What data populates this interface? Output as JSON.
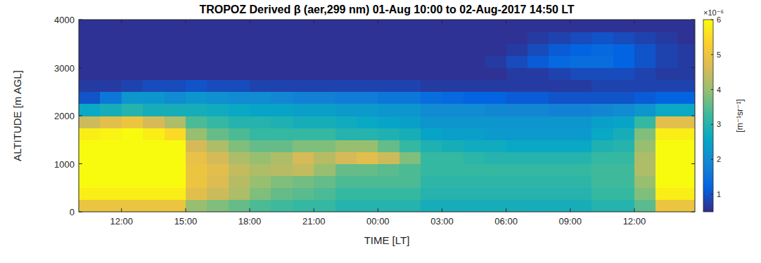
{
  "chart_data": {
    "type": "heatmap",
    "title": "TROPOZ Derived β (aer,299 nm) 01-Aug 10:00 to 02-Aug-2017 14:50 LT",
    "x_label": "TIME [LT]",
    "y_label": "ALTITUDE [m AGL]",
    "xlim": [
      10,
      38.833
    ],
    "xticks": [
      {
        "value": 12,
        "label": "12:00"
      },
      {
        "value": 15,
        "label": "15:00"
      },
      {
        "value": 18,
        "label": "18:00"
      },
      {
        "value": 21,
        "label": "21:00"
      },
      {
        "value": 24,
        "label": "00:00"
      },
      {
        "value": 27,
        "label": "03:00"
      },
      {
        "value": 30,
        "label": "06:00"
      },
      {
        "value": 33,
        "label": "09:00"
      },
      {
        "value": 36,
        "label": "12:00"
      }
    ],
    "ylim": [
      0,
      4000
    ],
    "yticks": [
      0,
      1000,
      2000,
      3000,
      4000
    ],
    "x_edges": [
      10,
      11,
      12,
      13,
      14,
      15,
      16,
      17,
      18,
      19,
      20,
      21,
      22,
      23,
      24,
      25,
      26,
      27,
      28,
      29,
      30,
      31,
      32,
      33,
      34,
      35,
      36,
      37,
      38,
      38.833
    ],
    "y_edges": [
      0,
      250,
      500,
      750,
      1000,
      1250,
      1500,
      1750,
      2000,
      2250,
      2500,
      2750,
      3000,
      3250,
      3500,
      3750,
      4000
    ],
    "cells": [
      [
        5.0,
        5.0,
        5.0,
        5.0,
        5.0,
        4.0,
        3.8,
        3.6,
        3.4,
        3.3,
        3.2,
        3.2,
        3.0,
        3.0,
        3.0,
        3.0,
        2.8,
        2.8,
        2.8,
        2.8,
        2.8,
        2.8,
        2.8,
        2.8,
        3.0,
        3.0,
        3.5,
        5.0,
        5.0
      ],
      [
        5.8,
        5.8,
        5.8,
        5.8,
        5.8,
        4.8,
        4.5,
        4.2,
        3.8,
        3.6,
        3.5,
        3.4,
        3.2,
        3.2,
        3.2,
        3.2,
        3.0,
        3.0,
        3.0,
        3.0,
        3.0,
        3.0,
        3.0,
        3.0,
        3.2,
        3.2,
        3.8,
        5.8,
        5.8
      ],
      [
        6.0,
        6.0,
        6.0,
        6.0,
        6.0,
        5.0,
        4.7,
        4.3,
        4.0,
        3.8,
        3.7,
        3.6,
        3.4,
        3.4,
        3.4,
        3.4,
        3.1,
        3.1,
        3.1,
        3.1,
        3.1,
        3.1,
        3.1,
        3.1,
        3.3,
        3.3,
        4.0,
        6.0,
        6.0
      ],
      [
        6.0,
        6.0,
        6.0,
        6.0,
        6.0,
        5.0,
        4.8,
        4.4,
        4.2,
        4.3,
        4.4,
        4.0,
        3.6,
        3.6,
        3.5,
        3.4,
        3.2,
        3.2,
        3.2,
        3.2,
        3.2,
        3.2,
        3.2,
        3.2,
        3.3,
        3.3,
        4.2,
        6.0,
        6.0
      ],
      [
        6.0,
        6.0,
        6.0,
        6.0,
        6.0,
        4.9,
        4.6,
        4.2,
        4.0,
        4.2,
        4.6,
        4.3,
        4.6,
        4.8,
        4.5,
        3.8,
        3.2,
        3.2,
        3.1,
        3.0,
        3.0,
        3.0,
        3.0,
        3.0,
        3.2,
        3.2,
        4.2,
        6.0,
        6.0
      ],
      [
        6.0,
        6.0,
        6.0,
        6.0,
        6.0,
        4.6,
        4.2,
        3.8,
        3.6,
        3.6,
        3.8,
        3.8,
        4.0,
        4.0,
        3.6,
        3.2,
        2.9,
        2.8,
        2.7,
        2.7,
        2.6,
        2.6,
        2.6,
        2.6,
        2.9,
        3.0,
        4.0,
        6.0,
        6.0
      ],
      [
        5.8,
        5.9,
        6.0,
        5.8,
        5.5,
        4.0,
        3.6,
        3.4,
        3.2,
        3.2,
        3.2,
        3.2,
        3.0,
        3.0,
        2.9,
        2.8,
        2.5,
        2.4,
        2.4,
        2.3,
        2.3,
        2.3,
        2.3,
        2.3,
        2.6,
        2.8,
        3.8,
        5.8,
        5.8
      ],
      [
        4.5,
        4.8,
        5.0,
        4.6,
        4.2,
        3.4,
        3.2,
        3.0,
        3.0,
        2.9,
        2.8,
        2.8,
        2.7,
        2.6,
        2.5,
        2.4,
        2.2,
        2.2,
        2.2,
        2.2,
        2.2,
        2.2,
        2.2,
        2.2,
        2.4,
        2.5,
        3.2,
        4.8,
        4.8
      ],
      [
        2.6,
        2.8,
        3.0,
        2.8,
        2.8,
        2.8,
        2.7,
        2.6,
        2.5,
        2.5,
        2.4,
        2.4,
        2.3,
        2.3,
        2.2,
        2.2,
        2.0,
        2.0,
        2.0,
        1.9,
        1.9,
        1.9,
        1.8,
        1.8,
        1.9,
        2.0,
        2.2,
        2.6,
        2.6
      ],
      [
        1.0,
        1.6,
        2.2,
        2.2,
        2.0,
        2.2,
        2.1,
        2.0,
        2.0,
        1.9,
        1.8,
        1.8,
        1.7,
        1.7,
        1.6,
        1.6,
        1.4,
        1.3,
        1.2,
        1.2,
        1.1,
        1.1,
        1.0,
        1.0,
        1.0,
        1.0,
        1.1,
        1.2,
        1.2
      ],
      [
        0.7,
        0.7,
        0.8,
        0.9,
        0.9,
        1.0,
        0.9,
        0.9,
        0.8,
        0.8,
        0.8,
        0.8,
        0.8,
        0.8,
        0.8,
        0.8,
        0.7,
        0.7,
        0.7,
        0.7,
        0.7,
        0.7,
        0.7,
        0.7,
        0.8,
        0.8,
        0.8,
        0.8,
        0.8
      ],
      [
        0.6,
        0.6,
        0.6,
        0.6,
        0.6,
        0.6,
        0.6,
        0.6,
        0.6,
        0.6,
        0.6,
        0.6,
        0.6,
        0.6,
        0.6,
        0.6,
        0.6,
        0.6,
        0.6,
        0.6,
        0.7,
        0.7,
        0.8,
        0.9,
        0.9,
        0.9,
        0.8,
        0.7,
        0.7
      ],
      [
        0.6,
        0.6,
        0.6,
        0.6,
        0.6,
        0.6,
        0.6,
        0.6,
        0.6,
        0.6,
        0.6,
        0.6,
        0.6,
        0.6,
        0.6,
        0.6,
        0.6,
        0.6,
        0.6,
        0.7,
        0.9,
        1.1,
        1.3,
        1.4,
        1.4,
        1.2,
        1.0,
        0.8,
        0.7
      ],
      [
        0.6,
        0.6,
        0.6,
        0.6,
        0.6,
        0.6,
        0.6,
        0.6,
        0.6,
        0.6,
        0.6,
        0.6,
        0.6,
        0.6,
        0.6,
        0.6,
        0.6,
        0.6,
        0.6,
        0.6,
        0.7,
        0.9,
        1.1,
        1.2,
        1.3,
        1.2,
        1.0,
        0.8,
        0.7
      ],
      [
        0.6,
        0.6,
        0.6,
        0.6,
        0.6,
        0.6,
        0.6,
        0.6,
        0.6,
        0.6,
        0.6,
        0.6,
        0.6,
        0.6,
        0.6,
        0.6,
        0.6,
        0.6,
        0.6,
        0.6,
        0.6,
        0.7,
        0.8,
        0.9,
        1.0,
        0.9,
        0.8,
        0.7,
        0.6
      ],
      [
        0.6,
        0.6,
        0.6,
        0.6,
        0.6,
        0.6,
        0.6,
        0.6,
        0.6,
        0.6,
        0.6,
        0.6,
        0.6,
        0.6,
        0.6,
        0.6,
        0.6,
        0.6,
        0.6,
        0.6,
        0.6,
        0.6,
        0.6,
        0.6,
        0.6,
        0.6,
        0.6,
        0.6,
        0.6
      ]
    ],
    "colorbar": {
      "range": [
        0.5,
        6
      ],
      "ticks": [
        1,
        2,
        3,
        4,
        5,
        6
      ],
      "multiplier": "×10⁻⁶",
      "label": "[m⁻¹sr⁻¹]"
    }
  }
}
